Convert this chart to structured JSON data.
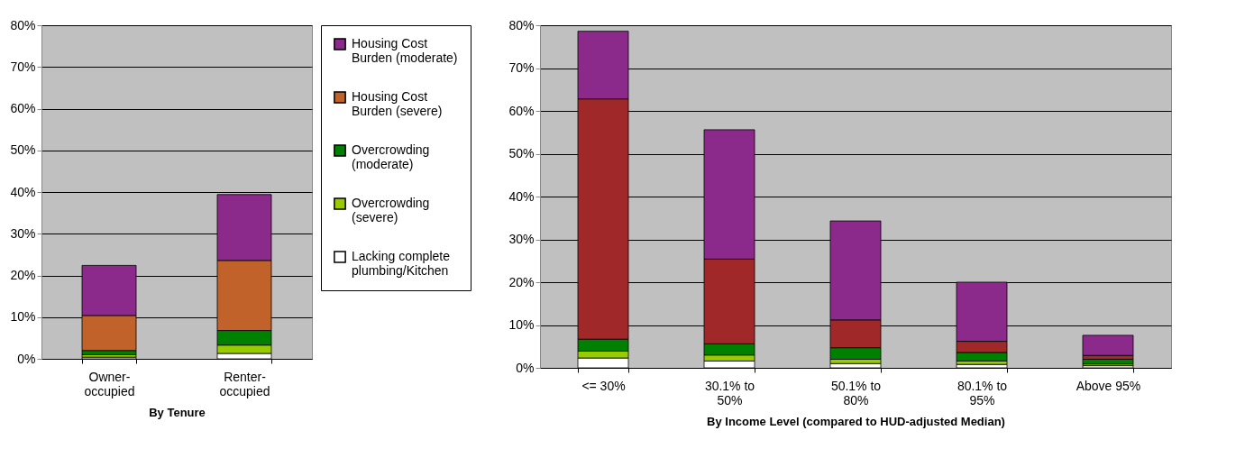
{
  "chart_data": [
    {
      "type": "bar",
      "stacked": true,
      "xlabel": "By Tenure",
      "categories": [
        "Owner-occupied",
        "Renter-occupied"
      ],
      "ylim": [
        0,
        80
      ],
      "yticks": [
        {
          "value": 0,
          "label": "0%"
        },
        {
          "value": 10,
          "label": "10%"
        },
        {
          "value": 20,
          "label": "20%"
        },
        {
          "value": 30,
          "label": "30%"
        },
        {
          "value": 40,
          "label": "40%"
        },
        {
          "value": 50,
          "label": "50%"
        },
        {
          "value": 60,
          "label": "60%"
        },
        {
          "value": 70,
          "label": "70%"
        },
        {
          "value": 80,
          "label": "80%"
        }
      ],
      "grid": "y",
      "legend": "right",
      "series": [
        {
          "name": "Lacking complete plumbing/Kitchen",
          "color": "#ffffff",
          "values": [
            0.4,
            1.3
          ]
        },
        {
          "name": "Overcrowding (severe)",
          "color": "#99cc00",
          "values": [
            0.6,
            2.0
          ]
        },
        {
          "name": "Overcrowding (moderate)",
          "color": "#008000",
          "values": [
            1.0,
            3.5
          ]
        },
        {
          "name": "Housing Cost Burden (severe)",
          "color": "#c0622a",
          "values": [
            8.4,
            16.8
          ]
        },
        {
          "name": "Housing Cost Burden (moderate)",
          "color": "#8b2a8b",
          "values": [
            12.0,
            15.8
          ]
        }
      ]
    },
    {
      "type": "bar",
      "stacked": true,
      "xlabel": "By Income Level (compared to HUD-adjusted Median)",
      "categories": [
        "<= 30%",
        "30.1% to 50%",
        "50.1% to 80%",
        "80.1% to 95%",
        "Above 95%"
      ],
      "ylim": [
        0,
        80
      ],
      "yticks": [
        {
          "value": 0,
          "label": "0%"
        },
        {
          "value": 10,
          "label": "10%"
        },
        {
          "value": 20,
          "label": "20%"
        },
        {
          "value": 30,
          "label": "30%"
        },
        {
          "value": 40,
          "label": "40%"
        },
        {
          "value": 50,
          "label": "50%"
        },
        {
          "value": 60,
          "label": "60%"
        },
        {
          "value": 70,
          "label": "70%"
        },
        {
          "value": 80,
          "label": "80%"
        }
      ],
      "grid": "y",
      "series": [
        {
          "color": "#ffffff",
          "values": [
            2.3,
            1.6,
            1.0,
            0.8,
            0.5
          ]
        },
        {
          "color": "#99cc00",
          "values": [
            1.6,
            1.4,
            1.0,
            0.8,
            0.4
          ]
        },
        {
          "color": "#008000",
          "values": [
            2.8,
            2.6,
            2.7,
            2.0,
            1.1
          ]
        },
        {
          "color": "#a02828",
          "values": [
            56.1,
            19.8,
            6.5,
            2.6,
            0.9
          ]
        },
        {
          "color": "#8b2a8b",
          "values": [
            15.8,
            30.2,
            23.1,
            13.8,
            4.7
          ]
        }
      ]
    }
  ]
}
